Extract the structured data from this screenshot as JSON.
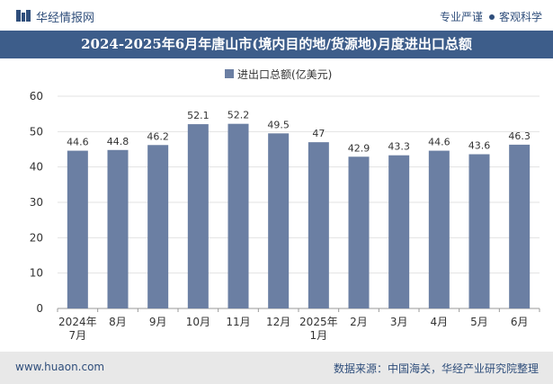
{
  "header": {
    "logo_text": "华经情报网",
    "slogan_left": "专业严谨",
    "slogan_right": "客观科学"
  },
  "title": "2024-2025年6月年唐山市(境内目的地/货源地)月度进出口总额",
  "footer": {
    "website": "www.huaon.com",
    "source": "数据来源：中国海关，华经产业研究院整理"
  },
  "colors": {
    "bar": "#6b7fa3",
    "title_bg": "#3d5d8a",
    "brand": "#2f4e7b"
  },
  "chart_data": {
    "type": "bar",
    "title": "2024-2025年6月年唐山市(境内目的地/货源地)月度进出口总额",
    "legend": [
      "进出口总额(亿美元)"
    ],
    "legend_position": "top-center",
    "categories": [
      [
        "2024年",
        "7月"
      ],
      [
        "8月"
      ],
      [
        "9月"
      ],
      [
        "10月"
      ],
      [
        "11月"
      ],
      [
        "12月"
      ],
      [
        "2025年",
        "1月"
      ],
      [
        "2月"
      ],
      [
        "3月"
      ],
      [
        "4月"
      ],
      [
        "5月"
      ],
      [
        "6月"
      ]
    ],
    "series": [
      {
        "name": "进出口总额(亿美元)",
        "values": [
          44.6,
          44.8,
          46.2,
          52.1,
          52.2,
          49.5,
          47,
          42.9,
          43.3,
          44.6,
          43.6,
          46.3
        ],
        "labels": [
          "44.6",
          "44.8",
          "46.2",
          "52.1",
          "52.2",
          "49.5",
          "47",
          "42.9",
          "43.3",
          "44.6",
          "43.6",
          "46.3"
        ]
      }
    ],
    "ylim": [
      0,
      60
    ],
    "yticks": [
      0,
      10,
      20,
      30,
      40,
      50,
      60
    ],
    "grid": true
  }
}
